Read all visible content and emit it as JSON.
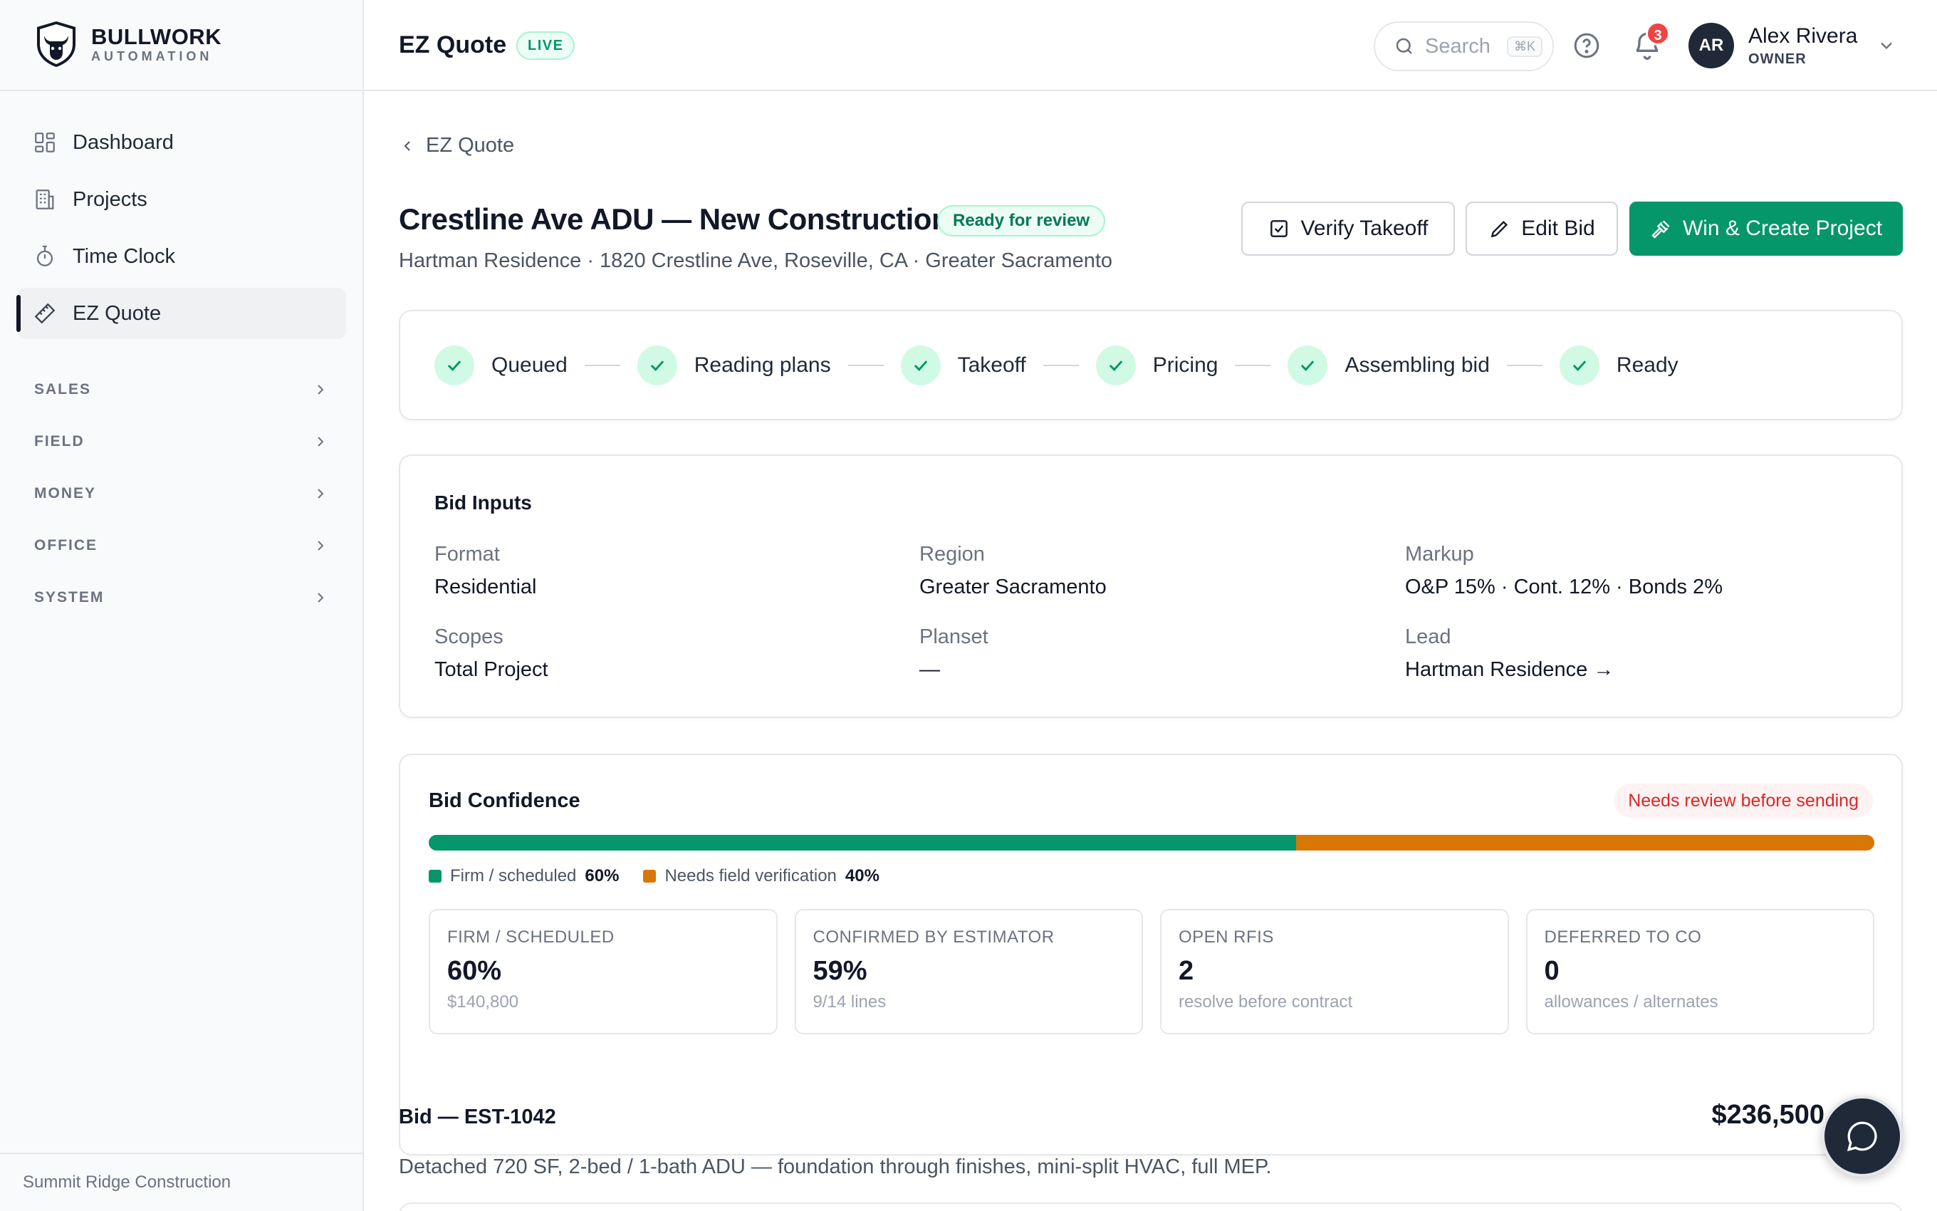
{
  "brand": {
    "name": "BULLWORK",
    "sub": "AUTOMATION"
  },
  "sidebar": {
    "items": [
      {
        "label": "Dashboard",
        "icon": "dashboard-icon"
      },
      {
        "label": "Projects",
        "icon": "building-icon"
      },
      {
        "label": "Time Clock",
        "icon": "stopwatch-icon"
      },
      {
        "label": "EZ Quote",
        "icon": "ruler-icon",
        "active": true
      }
    ],
    "sections": [
      "SALES",
      "FIELD",
      "MONEY",
      "OFFICE",
      "SYSTEM"
    ],
    "footer": "Summit Ridge Construction"
  },
  "topbar": {
    "title": "EZ Quote",
    "live_badge": "LIVE",
    "search_placeholder": "Search",
    "search_shortcut": "⌘K",
    "notifications": "3",
    "user": {
      "initials": "AR",
      "name": "Alex Rivera",
      "role": "OWNER"
    }
  },
  "page": {
    "breadcrumb": "EZ Quote",
    "title": "Crestline Ave ADU — New Construction",
    "status": "Ready for review",
    "subtitle": "Hartman Residence · 1820 Crestline Ave, Roseville, CA · Greater Sacramento",
    "buttons": {
      "verify": "Verify Takeoff",
      "edit": "Edit Bid",
      "win": "Win & Create Project"
    }
  },
  "steps": [
    "Queued",
    "Reading plans",
    "Takeoff",
    "Pricing",
    "Assembling bid",
    "Ready"
  ],
  "bid_inputs": {
    "title": "Bid Inputs",
    "format": {
      "label": "Format",
      "value": "Residential"
    },
    "region": {
      "label": "Region",
      "value": "Greater Sacramento"
    },
    "markup": {
      "label": "Markup",
      "value": "O&P 15% · Cont. 12% · Bonds 2%"
    },
    "scopes": {
      "label": "Scopes",
      "value": "Total Project"
    },
    "planset": {
      "label": "Planset",
      "value": "—"
    },
    "lead": {
      "label": "Lead",
      "value": "Hartman Residence →"
    }
  },
  "confidence": {
    "title": "Bid Confidence",
    "warning": "Needs review before sending",
    "firm_pct": 60,
    "needs_pct": 40,
    "legend": {
      "firm_label": "Firm / scheduled",
      "firm_value": "60%",
      "needs_label": "Needs field verification",
      "needs_value": "40%"
    },
    "colors": {
      "firm": "#059669",
      "needs": "#d97706"
    },
    "stats": [
      {
        "label": "FIRM / SCHEDULED",
        "value": "60%",
        "sub": "$140,800"
      },
      {
        "label": "CONFIRMED BY ESTIMATOR",
        "value": "59%",
        "sub": "9/14 lines"
      },
      {
        "label": "OPEN RFIS",
        "value": "2",
        "sub": "resolve before contract"
      },
      {
        "label": "DEFERRED TO CO",
        "value": "0",
        "sub": "allowances / alternates"
      }
    ]
  },
  "bid": {
    "title": "Bid — EST-1042",
    "amount": "$236,500",
    "description": "Detached 720 SF, 2-bed / 1-bath ADU — foundation through finishes, mini-split HVAC, full MEP."
  }
}
